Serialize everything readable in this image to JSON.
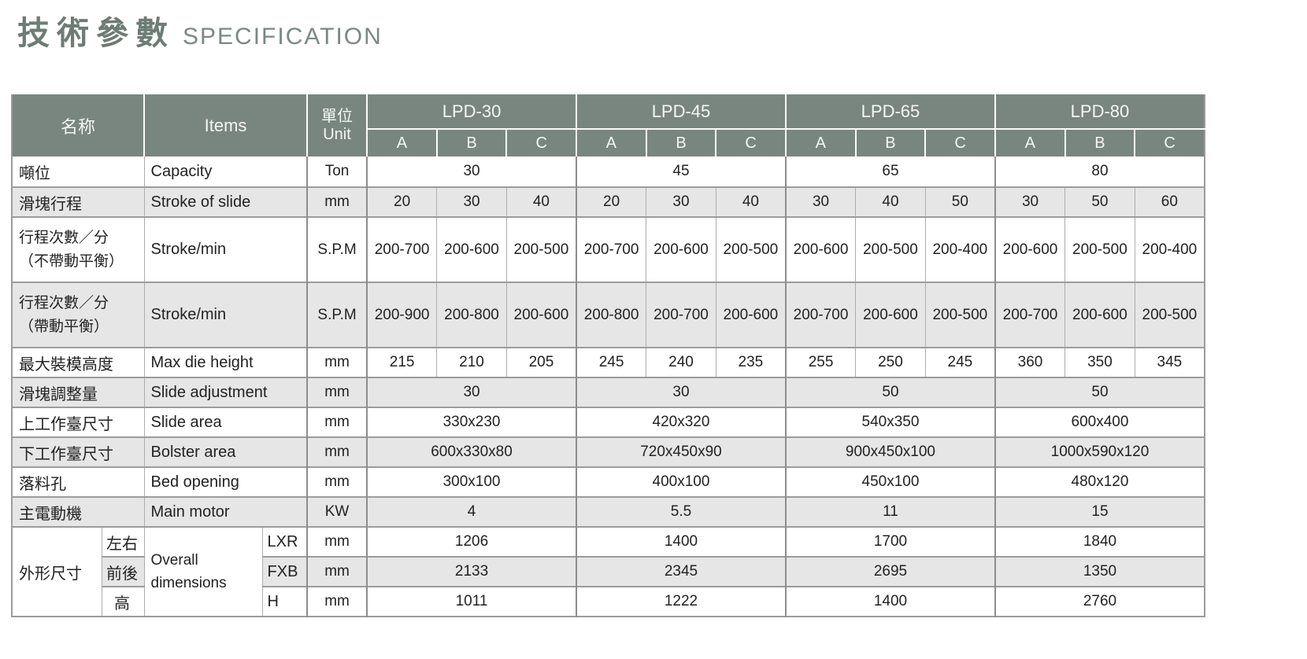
{
  "title": {
    "zh": "技術參數",
    "en": "SPECIFICATION"
  },
  "colors": {
    "header_bg": "#798680",
    "header_text": "#f4f6f5",
    "stripe_bg": "#e6e6e6",
    "title_accent": "#6d7c75",
    "grid_line": "#9c9c9c"
  },
  "table": {
    "header": {
      "name_zh": "名称",
      "items": "Items",
      "unit_zh": "單位",
      "unit_en": "Unit",
      "models": [
        "LPD-30",
        "LPD-45",
        "LPD-65",
        "LPD-80"
      ],
      "subcols": [
        "A",
        "B",
        "C"
      ]
    },
    "rows": {
      "capacity": {
        "name": "噸位",
        "item": "Capacity",
        "unit": "Ton",
        "values": [
          "30",
          "45",
          "65",
          "80"
        ]
      },
      "stroke": {
        "name": "滑塊行程",
        "item": "Stroke of slide",
        "unit": "mm",
        "values": [
          "20",
          "30",
          "40",
          "20",
          "30",
          "40",
          "30",
          "40",
          "50",
          "30",
          "50",
          "60"
        ]
      },
      "spm_without": {
        "name_line1": "行程次數／分",
        "name_line2": "（不帶動平衡）",
        "item": "Stroke/min",
        "unit": "S.P.M",
        "values": [
          "200-700",
          "200-600",
          "200-500",
          "200-700",
          "200-600",
          "200-500",
          "200-600",
          "200-500",
          "200-400",
          "200-600",
          "200-500",
          "200-400"
        ]
      },
      "spm_with": {
        "name_line1": "行程次數／分",
        "name_line2": "（帶動平衡）",
        "item": "Stroke/min",
        "unit": "S.P.M",
        "values": [
          "200-900",
          "200-800",
          "200-600",
          "200-800",
          "200-700",
          "200-600",
          "200-700",
          "200-600",
          "200-500",
          "200-700",
          "200-600",
          "200-500"
        ]
      },
      "max_die_height": {
        "name": "最大裝模高度",
        "item": "Max die height",
        "unit": "mm",
        "values": [
          "215",
          "210",
          "205",
          "245",
          "240",
          "235",
          "255",
          "250",
          "245",
          "360",
          "350",
          "345"
        ]
      },
      "slide_adjustment": {
        "name": "滑塊調整量",
        "item": "Slide adjustment",
        "unit": "mm",
        "values": [
          "30",
          "30",
          "50",
          "50"
        ]
      },
      "slide_area": {
        "name": "上工作臺尺寸",
        "item": "Slide area",
        "unit": "mm",
        "values": [
          "330x230",
          "420x320",
          "540x350",
          "600x400"
        ]
      },
      "bolster_area": {
        "name": "下工作臺尺寸",
        "item": "Bolster area",
        "unit": "mm",
        "values": [
          "600x330x80",
          "720x450x90",
          "900x450x100",
          "1000x590x120"
        ]
      },
      "bed_opening": {
        "name": "落料孔",
        "item": "Bed opening",
        "unit": "mm",
        "values": [
          "300x100",
          "400x100",
          "450x100",
          "480x120"
        ]
      },
      "main_motor": {
        "name": "主電動機",
        "item": "Main motor",
        "unit": "KW",
        "values": [
          "4",
          "5.5",
          "11",
          "15"
        ]
      },
      "overall": {
        "name": "外形尺寸",
        "item_line1": "Overall",
        "item_line2": "dimensions",
        "sub": [
          {
            "axis": "左右",
            "code": "LXR",
            "unit": "mm",
            "values": [
              "1206",
              "1400",
              "1700",
              "1840"
            ]
          },
          {
            "axis": "前後",
            "code": "FXB",
            "unit": "mm",
            "values": [
              "2133",
              "2345",
              "2695",
              "1350"
            ]
          },
          {
            "axis": "高",
            "code": "H",
            "unit": "mm",
            "values": [
              "1011",
              "1222",
              "1400",
              "2760"
            ]
          }
        ]
      }
    }
  }
}
